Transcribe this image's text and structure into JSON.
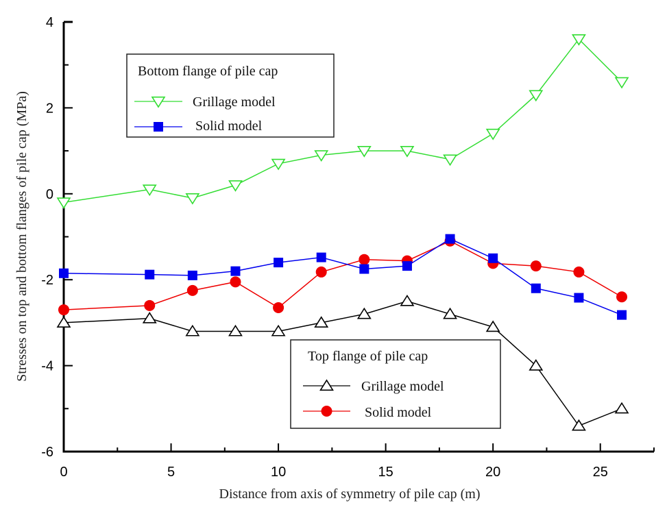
{
  "chart_data": {
    "type": "line",
    "title": "",
    "xlabel": "Distance from axis of symmetry of pile cap (m)",
    "ylabel": "Stresses on top and bottom flanges of pile cap (MPa)",
    "xlim": [
      0,
      27.5
    ],
    "ylim": [
      -6,
      4
    ],
    "xticks": [
      0,
      5,
      10,
      15,
      20,
      25
    ],
    "xtick_labels": [
      "0",
      "5",
      "10",
      "15",
      "20",
      "25"
    ],
    "xminor": [
      2.5,
      7.5,
      12.5,
      17.5,
      22.5
    ],
    "yticks": [
      4,
      2,
      0,
      -2,
      -4,
      -6
    ],
    "ytick_labels": [
      "4",
      "2",
      "0",
      "-2",
      "-4",
      "-6"
    ],
    "yminor": [
      3,
      1,
      -1,
      -3,
      -5
    ],
    "grid": false,
    "x": [
      0,
      4,
      6,
      8,
      10,
      12,
      14,
      16,
      18,
      20,
      22,
      24,
      26
    ],
    "legends": [
      {
        "title": "Bottom flange of pile cap",
        "placement": "upper-left",
        "entries": [
          {
            "label": "Grillage model",
            "series": 0
          },
          {
            "label": "Solid model",
            "series": 1
          }
        ]
      },
      {
        "title": "Top flange of pile cap",
        "placement": "lower-center-right",
        "entries": [
          {
            "label": "Grillage model",
            "series": 2
          },
          {
            "label": "Solid model",
            "series": 3
          }
        ]
      }
    ],
    "series": [
      {
        "name": "Bottom flange - Grillage model",
        "group": "Bottom flange of pile cap",
        "marker": "triangle-down-open",
        "color": "#33dd33",
        "values": [
          -0.2,
          0.1,
          -0.1,
          0.2,
          0.7,
          0.9,
          1.0,
          1.0,
          0.8,
          1.4,
          2.3,
          3.6,
          2.6
        ]
      },
      {
        "name": "Bottom flange - Solid model",
        "group": "Bottom flange of pile cap",
        "marker": "square-filled",
        "color": "#0000ee",
        "values": [
          -1.85,
          -1.88,
          -1.9,
          -1.8,
          -1.6,
          -1.48,
          -1.75,
          -1.68,
          -1.05,
          -1.5,
          -2.2,
          -2.42,
          -2.82
        ]
      },
      {
        "name": "Top flange - Grillage model",
        "group": "Top flange of pile cap",
        "marker": "triangle-up-open",
        "color": "#000000",
        "values": [
          -3.0,
          -2.9,
          -3.2,
          -3.2,
          -3.2,
          -3.0,
          -2.8,
          -2.5,
          -2.8,
          -3.1,
          -4.0,
          -5.4,
          -5.0
        ]
      },
      {
        "name": "Top flange - Solid model",
        "group": "Top flange of pile cap",
        "marker": "circle-filled",
        "color": "#ee0000",
        "values": [
          -2.7,
          -2.6,
          -2.25,
          -2.05,
          -2.65,
          -1.82,
          -1.53,
          -1.56,
          -1.1,
          -1.62,
          -1.68,
          -1.82,
          -2.4
        ]
      }
    ]
  }
}
